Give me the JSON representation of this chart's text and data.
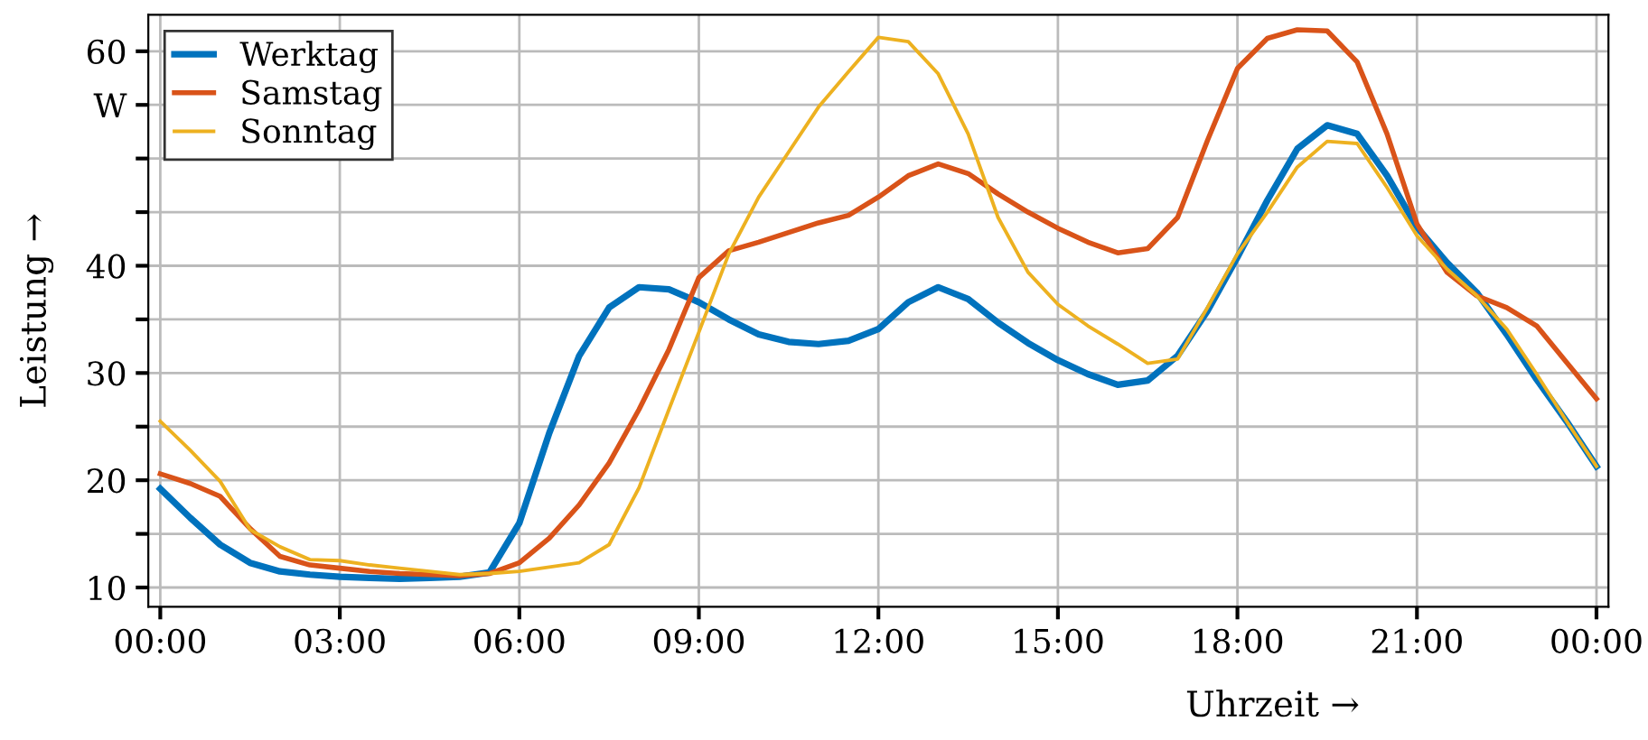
{
  "chart_data": {
    "type": "line",
    "xlabel": "Uhrzeit →",
    "ylabel": "Leistung →",
    "x": [
      0,
      0.5,
      1,
      1.5,
      2,
      2.5,
      3,
      3.5,
      4,
      4.5,
      5,
      5.5,
      6,
      6.5,
      7,
      7.5,
      8,
      8.5,
      9,
      9.5,
      10,
      10.5,
      11,
      11.5,
      12,
      12.5,
      13,
      13.5,
      14,
      14.5,
      15,
      15.5,
      16,
      16.5,
      17,
      17.5,
      18,
      18.5,
      19,
      19.5,
      20,
      20.5,
      21,
      21.5,
      22,
      22.5,
      23,
      23.5,
      24
    ],
    "series": [
      {
        "name": "Werktag",
        "color": "#0072bd",
        "values": [
          19.2,
          16.5,
          14.0,
          12.3,
          11.5,
          11.2,
          11.0,
          10.9,
          10.8,
          10.9,
          11.0,
          11.4,
          16.0,
          24.4,
          31.6,
          36.1,
          38.0,
          37.8,
          36.6,
          35.0,
          33.6,
          32.9,
          32.7,
          33.0,
          34.1,
          36.6,
          38.0,
          36.9,
          34.7,
          32.8,
          31.2,
          29.9,
          28.9,
          29.3,
          31.6,
          35.8,
          40.8,
          46.1,
          50.9,
          53.1,
          52.3,
          48.4,
          43.6,
          40.3,
          37.5,
          33.6,
          29.4,
          25.5,
          21.3
        ]
      },
      {
        "name": "Samstag",
        "color": "#d95319",
        "values": [
          20.6,
          19.7,
          18.5,
          15.5,
          12.9,
          12.1,
          11.8,
          11.5,
          11.3,
          11.2,
          11.1,
          11.3,
          12.3,
          14.6,
          17.7,
          21.6,
          26.6,
          32.2,
          38.9,
          41.4,
          42.2,
          43.1,
          44.0,
          44.7,
          46.4,
          48.4,
          49.5,
          48.6,
          46.7,
          45.0,
          43.5,
          42.2,
          41.2,
          41.6,
          44.5,
          51.7,
          58.4,
          61.2,
          62.0,
          61.9,
          59.0,
          52.3,
          43.9,
          39.4,
          37.2,
          36.1,
          34.4,
          31.0,
          27.6
        ]
      },
      {
        "name": "Sonntag",
        "color": "#edb120",
        "values": [
          25.5,
          22.8,
          19.9,
          15.4,
          13.8,
          12.6,
          12.5,
          12.1,
          11.8,
          11.5,
          11.2,
          11.3,
          11.5,
          11.9,
          12.3,
          14.0,
          19.3,
          26.6,
          33.8,
          41.1,
          46.4,
          50.6,
          54.8,
          58.1,
          61.3,
          60.9,
          57.9,
          52.3,
          44.5,
          39.4,
          36.4,
          34.4,
          32.7,
          30.9,
          31.3,
          36.1,
          41.1,
          45.0,
          49.2,
          51.6,
          51.4,
          47.3,
          42.8,
          39.7,
          37.2,
          34.1,
          29.9,
          25.5,
          21.3
        ]
      }
    ],
    "xlim": [
      -0.2,
      24.2
    ],
    "xticks": [
      {
        "value": 0,
        "label": "00:00"
      },
      {
        "value": 3,
        "label": "03:00"
      },
      {
        "value": 6,
        "label": "06:00"
      },
      {
        "value": 9,
        "label": "09:00"
      },
      {
        "value": 12,
        "label": "12:00"
      },
      {
        "value": 15,
        "label": "15:00"
      },
      {
        "value": 18,
        "label": "18:00"
      },
      {
        "value": 21,
        "label": "21:00"
      },
      {
        "value": 24,
        "label": "00:00"
      }
    ],
    "ylim": [
      8.2,
      63.4
    ],
    "yticks": [
      10,
      {
        "value": 15,
        "label": null
      },
      20,
      {
        "value": 25,
        "label": null
      },
      30,
      {
        "value": 35,
        "label": null
      },
      40,
      {
        "value": 45,
        "label": null
      },
      {
        "value": 50,
        "label": null
      },
      {
        "value": 55,
        "label": "W"
      },
      60
    ],
    "grid": true,
    "legend": "top left",
    "marker": "none",
    "line_style": "solid"
  }
}
